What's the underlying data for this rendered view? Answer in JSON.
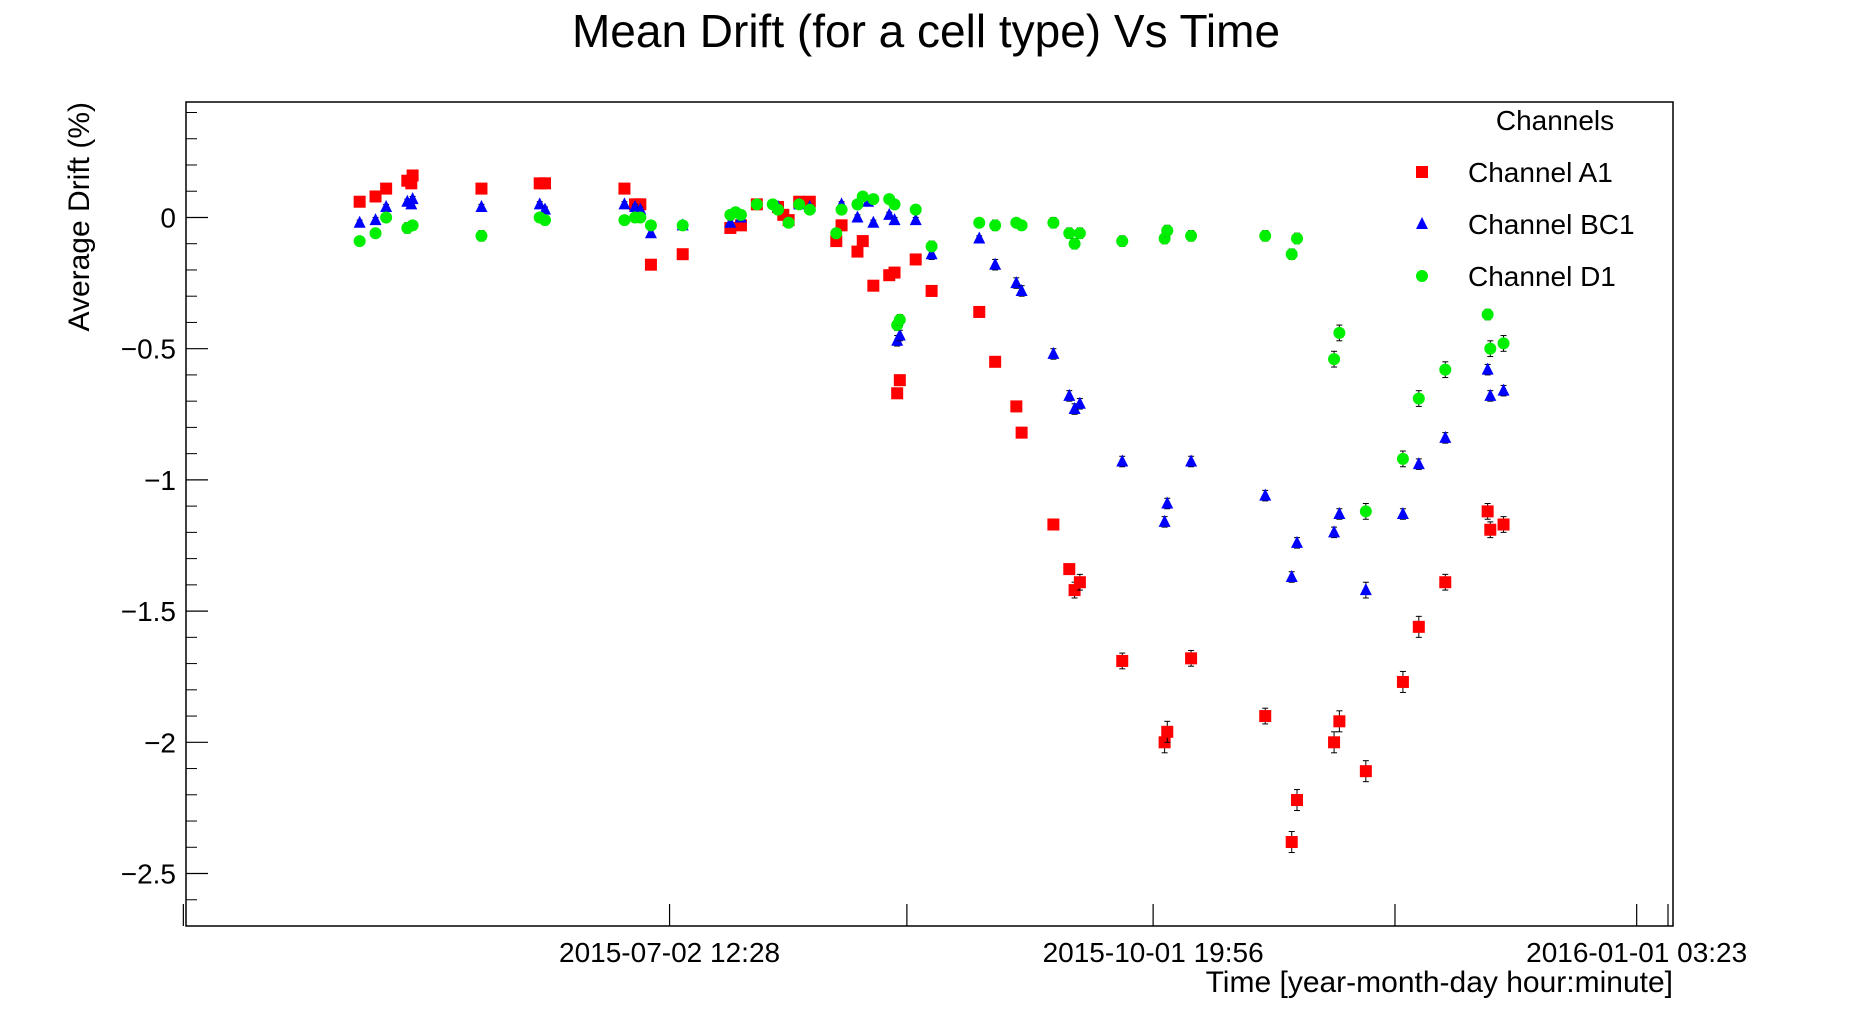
{
  "chart_data": {
    "type": "scatter",
    "title": "Mean Drift (for a cell type) Vs Time",
    "xlabel": "Time [year-month-day hour:minute]",
    "ylabel": "Average Drift (%)",
    "x_axis": {
      "type": "date",
      "range": [
        "2015-04-02 05:00",
        "2016-01-08 00:00"
      ],
      "major_ticks": [
        {
          "x": "2015-04-01 17:00",
          "label": ""
        },
        {
          "x": "2015-07-02 12:28",
          "label": "2015-07-02 12:28"
        },
        {
          "x": "2015-08-16 08:00",
          "label": ""
        },
        {
          "x": "2015-10-01 19:56",
          "label": "2015-10-01 19:56"
        },
        {
          "x": "2015-11-16 12:00",
          "label": ""
        },
        {
          "x": "2016-01-01 03:23",
          "label": "2016-01-01 03:23"
        }
      ]
    },
    "y_axis": {
      "range": [
        -2.7,
        0.44
      ],
      "ticks": [
        {
          "y": 0,
          "label": "0"
        },
        {
          "y": -0.5,
          "label": "−0.5"
        },
        {
          "y": -1,
          "label": "−1"
        },
        {
          "y": -1.5,
          "label": "−1.5"
        },
        {
          "y": -2,
          "label": "−2"
        },
        {
          "y": -2.5,
          "label": "−2.5"
        }
      ]
    },
    "grid": false,
    "legend": {
      "title": "Channels",
      "position": "top-right"
    },
    "series": [
      {
        "name": "Channel A1",
        "color": "#ff0000",
        "marker": "square",
        "points": [
          [
            "2015-05-05",
            0.06,
            0.01
          ],
          [
            "2015-05-08",
            0.08,
            0.01
          ],
          [
            "2015-05-10",
            0.11,
            0.01
          ],
          [
            "2015-05-14",
            0.14,
            0.01
          ],
          [
            "2015-05-14 18:00",
            0.13,
            0.01
          ],
          [
            "2015-05-15",
            0.16,
            0.01
          ],
          [
            "2015-05-28",
            0.11,
            0.01
          ],
          [
            "2015-06-08",
            0.13,
            0.01
          ],
          [
            "2015-06-09",
            0.13,
            0.01
          ],
          [
            "2015-06-24",
            0.11,
            0.01
          ],
          [
            "2015-06-26",
            0.05,
            0.01
          ],
          [
            "2015-06-27",
            0.05,
            0.01
          ],
          [
            "2015-06-29",
            -0.18,
            0.01
          ],
          [
            "2015-07-05",
            -0.14,
            0.01
          ],
          [
            "2015-07-14",
            -0.04,
            0.01
          ],
          [
            "2015-07-16",
            -0.03,
            0.01
          ],
          [
            "2015-07-19",
            0.05,
            0.01
          ],
          [
            "2015-07-23",
            0.04,
            0.01
          ],
          [
            "2015-07-24",
            0.01,
            0.01
          ],
          [
            "2015-07-25",
            -0.01,
            0.01
          ],
          [
            "2015-07-27",
            0.06,
            0.01
          ],
          [
            "2015-07-29",
            0.06,
            0.01
          ],
          [
            "2015-08-03",
            -0.09,
            0.02
          ],
          [
            "2015-08-04",
            -0.03,
            0.02
          ],
          [
            "2015-08-07",
            -0.13,
            0.01
          ],
          [
            "2015-08-08",
            -0.09,
            0.01
          ],
          [
            "2015-08-10",
            -0.26,
            0.01
          ],
          [
            "2015-08-13",
            -0.22,
            0.01
          ],
          [
            "2015-08-14",
            -0.21,
            0.01
          ],
          [
            "2015-08-14 12:00",
            -0.67,
            0.02
          ],
          [
            "2015-08-15",
            -0.62,
            0.02
          ],
          [
            "2015-08-18",
            -0.16,
            0.02
          ],
          [
            "2015-08-21",
            -0.28,
            0.02
          ],
          [
            "2015-08-30",
            -0.36,
            0.02
          ],
          [
            "2015-09-02",
            -0.55,
            0.02
          ],
          [
            "2015-09-06",
            -0.72,
            0.02
          ],
          [
            "2015-09-07",
            -0.82,
            0.02
          ],
          [
            "2015-09-13",
            -1.17,
            0.02
          ],
          [
            "2015-09-16",
            -1.34,
            0.02
          ],
          [
            "2015-09-17",
            -1.42,
            0.03
          ],
          [
            "2015-09-18",
            -1.39,
            0.03
          ],
          [
            "2015-09-26",
            -1.69,
            0.03
          ],
          [
            "2015-10-04",
            -2.0,
            0.04
          ],
          [
            "2015-10-04 12:00",
            -1.96,
            0.04
          ],
          [
            "2015-10-09",
            -1.68,
            0.03
          ],
          [
            "2015-10-23",
            -1.9,
            0.03
          ],
          [
            "2015-10-28",
            -2.38,
            0.04
          ],
          [
            "2015-10-29",
            -2.22,
            0.04
          ],
          [
            "2015-11-05",
            -2.0,
            0.04
          ],
          [
            "2015-11-06",
            -1.92,
            0.04
          ],
          [
            "2015-11-11",
            -2.11,
            0.04
          ],
          [
            "2015-11-18",
            -1.77,
            0.04
          ],
          [
            "2015-11-21",
            -1.56,
            0.04
          ],
          [
            "2015-11-26",
            -1.39,
            0.03
          ],
          [
            "2015-12-04",
            -1.12,
            0.03
          ],
          [
            "2015-12-04 12:00",
            -1.19,
            0.03
          ],
          [
            "2015-12-07",
            -1.17,
            0.03
          ]
        ]
      },
      {
        "name": "Channel BC1",
        "color": "#0000ff",
        "marker": "triangle",
        "points": [
          [
            "2015-05-05",
            -0.02,
            0.01
          ],
          [
            "2015-05-08",
            -0.01,
            0.01
          ],
          [
            "2015-05-10",
            0.04,
            0.01
          ],
          [
            "2015-05-14",
            0.06,
            0.01
          ],
          [
            "2015-05-14 18:00",
            0.05,
            0.01
          ],
          [
            "2015-05-15",
            0.07,
            0.01
          ],
          [
            "2015-05-28",
            0.04,
            0.01
          ],
          [
            "2015-06-08",
            0.05,
            0.01
          ],
          [
            "2015-06-09",
            0.03,
            0.01
          ],
          [
            "2015-06-24",
            0.05,
            0.01
          ],
          [
            "2015-06-26",
            0.04,
            0.01
          ],
          [
            "2015-06-27",
            0.03,
            0.01
          ],
          [
            "2015-06-29",
            -0.06,
            0.01
          ],
          [
            "2015-07-05",
            -0.03,
            0.01
          ],
          [
            "2015-07-14",
            -0.02,
            0.01
          ],
          [
            "2015-07-16",
            0.0,
            0.01
          ],
          [
            "2015-07-23",
            0.04,
            0.01
          ],
          [
            "2015-07-27",
            0.05,
            0.01
          ],
          [
            "2015-07-29",
            0.04,
            0.01
          ],
          [
            "2015-08-04",
            0.05,
            0.01
          ],
          [
            "2015-08-07",
            0.0,
            0.01
          ],
          [
            "2015-08-09",
            0.06,
            0.01
          ],
          [
            "2015-08-10",
            -0.02,
            0.01
          ],
          [
            "2015-08-13",
            0.01,
            0.01
          ],
          [
            "2015-08-14",
            -0.01,
            0.01
          ],
          [
            "2015-08-14 12:00",
            -0.47,
            0.02
          ],
          [
            "2015-08-15",
            -0.45,
            0.02
          ],
          [
            "2015-08-18",
            -0.01,
            0.01
          ],
          [
            "2015-08-21",
            -0.14,
            0.02
          ],
          [
            "2015-08-30",
            -0.08,
            0.01
          ],
          [
            "2015-09-02",
            -0.18,
            0.02
          ],
          [
            "2015-09-06",
            -0.25,
            0.02
          ],
          [
            "2015-09-07",
            -0.28,
            0.02
          ],
          [
            "2015-09-13",
            -0.52,
            0.02
          ],
          [
            "2015-09-16",
            -0.68,
            0.02
          ],
          [
            "2015-09-17",
            -0.73,
            0.02
          ],
          [
            "2015-09-18",
            -0.71,
            0.02
          ],
          [
            "2015-09-26",
            -0.93,
            0.02
          ],
          [
            "2015-10-04",
            -1.16,
            0.02
          ],
          [
            "2015-10-04 12:00",
            -1.09,
            0.02
          ],
          [
            "2015-10-09",
            -0.93,
            0.02
          ],
          [
            "2015-10-23",
            -1.06,
            0.02
          ],
          [
            "2015-10-28",
            -1.37,
            0.02
          ],
          [
            "2015-10-29",
            -1.24,
            0.02
          ],
          [
            "2015-11-05",
            -1.2,
            0.02
          ],
          [
            "2015-11-06",
            -1.13,
            0.02
          ],
          [
            "2015-11-11",
            -1.42,
            0.03
          ],
          [
            "2015-11-18",
            -1.13,
            0.02
          ],
          [
            "2015-11-21",
            -0.94,
            0.02
          ],
          [
            "2015-11-26",
            -0.84,
            0.02
          ],
          [
            "2015-12-04",
            -0.58,
            0.02
          ],
          [
            "2015-12-04 12:00",
            -0.68,
            0.02
          ],
          [
            "2015-12-07",
            -0.66,
            0.02
          ]
        ]
      },
      {
        "name": "Channel D1",
        "color": "#00ee00",
        "marker": "circle",
        "points": [
          [
            "2015-05-05",
            -0.09,
            0.01
          ],
          [
            "2015-05-08",
            -0.06,
            0.01
          ],
          [
            "2015-05-10",
            -0.0,
            0.01
          ],
          [
            "2015-05-14",
            -0.04,
            0.02
          ],
          [
            "2015-05-15",
            -0.03,
            0.01
          ],
          [
            "2015-05-28",
            -0.07,
            0.02
          ],
          [
            "2015-06-08",
            -0.0,
            0.01
          ],
          [
            "2015-06-09",
            -0.01,
            0.01
          ],
          [
            "2015-06-24",
            -0.01,
            0.01
          ],
          [
            "2015-06-26",
            0.0,
            0.01
          ],
          [
            "2015-06-27",
            -0.0,
            0.01
          ],
          [
            "2015-06-29",
            -0.03,
            0.01
          ],
          [
            "2015-07-05",
            -0.03,
            0.01
          ],
          [
            "2015-07-14",
            0.01,
            0.01
          ],
          [
            "2015-07-15",
            0.02,
            0.01
          ],
          [
            "2015-07-16",
            0.01,
            0.01
          ],
          [
            "2015-07-19",
            0.05,
            0.01
          ],
          [
            "2015-07-22",
            0.05,
            0.01
          ],
          [
            "2015-07-23",
            0.03,
            0.01
          ],
          [
            "2015-07-25",
            -0.02,
            0.01
          ],
          [
            "2015-07-27",
            0.05,
            0.01
          ],
          [
            "2015-07-29",
            0.03,
            0.01
          ],
          [
            "2015-08-03",
            -0.06,
            0.01
          ],
          [
            "2015-08-04",
            0.03,
            0.01
          ],
          [
            "2015-08-07",
            0.05,
            0.01
          ],
          [
            "2015-08-08",
            0.08,
            0.01
          ],
          [
            "2015-08-10",
            0.07,
            0.01
          ],
          [
            "2015-08-13",
            0.07,
            0.01
          ],
          [
            "2015-08-14",
            0.05,
            0.01
          ],
          [
            "2015-08-14 12:00",
            -0.41,
            0.02
          ],
          [
            "2015-08-15",
            -0.39,
            0.02
          ],
          [
            "2015-08-18",
            0.03,
            0.01
          ],
          [
            "2015-08-21",
            -0.11,
            0.02
          ],
          [
            "2015-08-30",
            -0.02,
            0.01
          ],
          [
            "2015-09-02",
            -0.03,
            0.02
          ],
          [
            "2015-09-06",
            -0.02,
            0.01
          ],
          [
            "2015-09-07",
            -0.03,
            0.01
          ],
          [
            "2015-09-13",
            -0.02,
            0.02
          ],
          [
            "2015-09-16",
            -0.06,
            0.02
          ],
          [
            "2015-09-17",
            -0.1,
            0.02
          ],
          [
            "2015-09-18",
            -0.06,
            0.02
          ],
          [
            "2015-09-26",
            -0.09,
            0.02
          ],
          [
            "2015-10-04",
            -0.08,
            0.02
          ],
          [
            "2015-10-04 12:00",
            -0.05,
            0.02
          ],
          [
            "2015-10-09",
            -0.07,
            0.02
          ],
          [
            "2015-10-23",
            -0.07,
            0.02
          ],
          [
            "2015-10-28",
            -0.14,
            0.02
          ],
          [
            "2015-10-29",
            -0.08,
            0.02
          ],
          [
            "2015-11-05",
            -0.54,
            0.03
          ],
          [
            "2015-11-06",
            -0.44,
            0.03
          ],
          [
            "2015-11-11",
            -1.12,
            0.03
          ],
          [
            "2015-11-18",
            -0.92,
            0.03
          ],
          [
            "2015-11-21",
            -0.69,
            0.03
          ],
          [
            "2015-11-26",
            -0.58,
            0.03
          ],
          [
            "2015-12-04",
            -0.37,
            0.02
          ],
          [
            "2015-12-04 12:00",
            -0.5,
            0.03
          ],
          [
            "2015-12-07",
            -0.48,
            0.03
          ]
        ]
      }
    ]
  }
}
